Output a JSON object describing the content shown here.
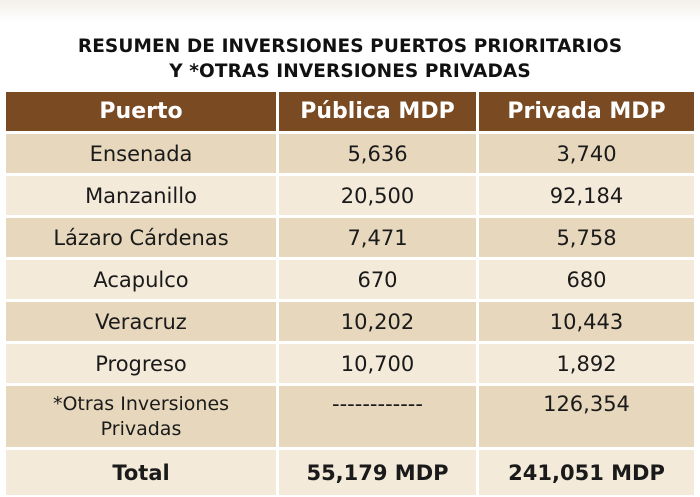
{
  "title_line1": "RESUMEN DE INVERSIONES PUERTOS PRIORITARIOS",
  "title_line2": "Y *OTRAS INVERSIONES PRIVADAS",
  "columns": [
    "Puerto",
    "Pública MDP",
    "Privada MDP"
  ],
  "rows": [
    {
      "puerto": "Ensenada",
      "publica": "5,636",
      "privada": "3,740"
    },
    {
      "puerto": "Manzanillo",
      "publica": "20,500",
      "privada": "92,184"
    },
    {
      "puerto": "Lázaro Cárdenas",
      "publica": "7,471",
      "privada": "5,758"
    },
    {
      "puerto": "Acapulco",
      "publica": "670",
      "privada": "680"
    },
    {
      "puerto": "Veracruz",
      "publica": "10,202",
      "privada": "10,443"
    },
    {
      "puerto": "Progreso",
      "publica": "10,700",
      "privada": "1,892"
    }
  ],
  "otras": {
    "puerto_line1": "*Otras Inversiones",
    "puerto_line2": "Privadas",
    "publica": "------------",
    "privada": "126,354"
  },
  "total": {
    "label": "Total",
    "publica": "55,179 MDP",
    "privada": "241,051 MDP"
  }
}
